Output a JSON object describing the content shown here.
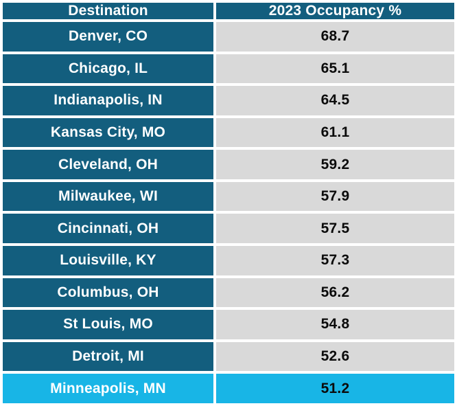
{
  "colors": {
    "header_bg": "#135E7E",
    "label_bg": "#135E7E",
    "value_bg": "#D9D9D9",
    "highlight_bg": "#18B5E6",
    "header_text": "#FFFFFF",
    "label_text": "#FFFFFF",
    "value_text": "#0B0B0B",
    "separator": "#FFFFFF"
  },
  "table": {
    "columns": [
      "Destination",
      "2023 Occupancy %"
    ],
    "rows": [
      {
        "destination": "Denver, CO",
        "occupancy": "68.7",
        "highlight": false
      },
      {
        "destination": "Chicago, IL",
        "occupancy": "65.1",
        "highlight": false
      },
      {
        "destination": "Indianapolis, IN",
        "occupancy": "64.5",
        "highlight": false
      },
      {
        "destination": "Kansas City, MO",
        "occupancy": "61.1",
        "highlight": false
      },
      {
        "destination": "Cleveland, OH",
        "occupancy": "59.2",
        "highlight": false
      },
      {
        "destination": "Milwaukee, WI",
        "occupancy": "57.9",
        "highlight": false
      },
      {
        "destination": "Cincinnati, OH",
        "occupancy": "57.5",
        "highlight": false
      },
      {
        "destination": "Louisville, KY",
        "occupancy": "57.3",
        "highlight": false
      },
      {
        "destination": "Columbus, OH",
        "occupancy": "56.2",
        "highlight": false
      },
      {
        "destination": "St Louis, MO",
        "occupancy": "54.8",
        "highlight": false
      },
      {
        "destination": "Detroit, MI",
        "occupancy": "52.6",
        "highlight": false
      },
      {
        "destination": "Minneapolis, MN",
        "occupancy": "51.2",
        "highlight": true
      }
    ]
  },
  "chart_data": {
    "type": "table",
    "title": "",
    "columns": [
      "Destination",
      "2023 Occupancy %"
    ],
    "categories": [
      "Denver, CO",
      "Chicago, IL",
      "Indianapolis, IN",
      "Kansas City, MO",
      "Cleveland, OH",
      "Milwaukee, WI",
      "Cincinnati, OH",
      "Louisville, KY",
      "Columbus, OH",
      "St Louis, MO",
      "Detroit, MI",
      "Minneapolis, MN"
    ],
    "values": [
      68.7,
      65.1,
      64.5,
      61.1,
      59.2,
      57.9,
      57.5,
      57.3,
      56.2,
      54.8,
      52.6,
      51.2
    ],
    "sort_order": "descending",
    "highlighted_row": "Minneapolis, MN"
  }
}
